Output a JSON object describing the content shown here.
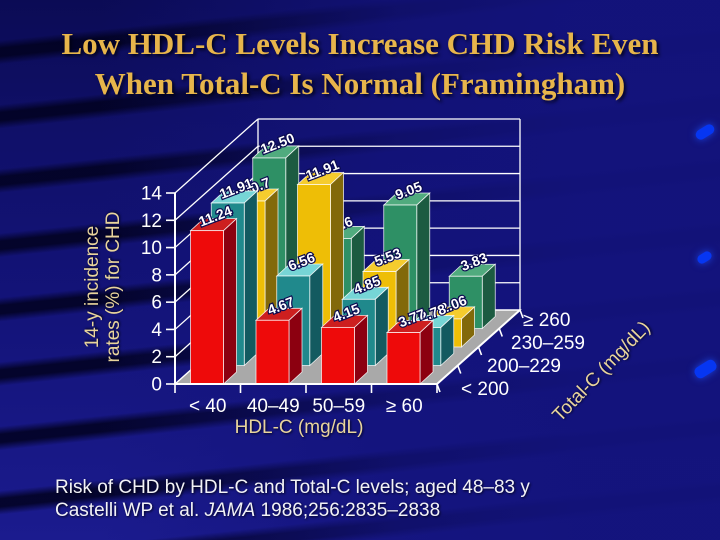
{
  "slide": {
    "title_line1": "Low HDL-C Levels Increase CHD Risk Even",
    "title_line2": "When Total-C Is Normal (Framingham)",
    "footnote_line1": "Risk of CHD by HDL-C and Total-C levels; aged 48–83 y",
    "footnote_citation_prefix": "Castelli WP et al. ",
    "footnote_citation_journal": "JAMA",
    "footnote_citation_suffix": " 1986;256:2835–2838"
  },
  "chart_data": {
    "type": "bar",
    "subtype": "3d-grouped-bar",
    "title": "",
    "x_axis": {
      "label": "HDL-C (mg/dL)",
      "categories": [
        "< 40",
        "40–49",
        "50–59",
        "≥ 60"
      ]
    },
    "y_axis": {
      "label_line1": "14-y incidence",
      "label_line2": "rates (%) for CHD",
      "min": 0,
      "max": 14,
      "tick_step": 2,
      "ticks": [
        0,
        2,
        4,
        6,
        8,
        10,
        12,
        14
      ],
      "grid": true
    },
    "z_axis": {
      "label": "Total-C (mg/dL)",
      "categories": [
        "< 200",
        "200–229",
        "230–259",
        "≥ 260"
      ]
    },
    "series": [
      {
        "name": "< 200",
        "values": [
          11.24,
          4.67,
          4.15,
          3.77
        ],
        "labels": [
          "11.24",
          "4.67",
          "4.15",
          "3.77"
        ],
        "color_front": "#ee0a0a",
        "color_side": "#8c0010",
        "color_top": "#cd1f1f"
      },
      {
        "name": "200–229",
        "values": [
          11.91,
          6.56,
          4.85,
          2.78
        ],
        "labels": [
          "11.91",
          "6.56",
          "4.85",
          "2.78"
        ],
        "color_front": "#20898c",
        "color_side": "#135a60",
        "color_top": "#76d5d6"
      },
      {
        "name": "230–259",
        "values": [
          10.7,
          11.91,
          5.53,
          2.06
        ],
        "labels": [
          "10.7",
          "11.91",
          "5.53",
          "2.06"
        ],
        "color_front": "#eebe06",
        "color_side": "#82690a",
        "color_top": "#f5cc2e"
      },
      {
        "name": "≥ 260",
        "values": [
          12.5,
          6.6,
          9.05,
          3.83
        ],
        "labels": [
          "12.50",
          "6.6",
          "9.05",
          "3.83"
        ],
        "color_front": "#2e9065",
        "color_side": "#1c5b41",
        "color_top": "#50ab7e"
      }
    ],
    "floor_color": "#a9a9a9",
    "grid_color": "#ffffff",
    "value_label_color": "#ffffff",
    "legend_position": "none"
  },
  "decor": {
    "edge_dash_color": "#0636f2"
  }
}
